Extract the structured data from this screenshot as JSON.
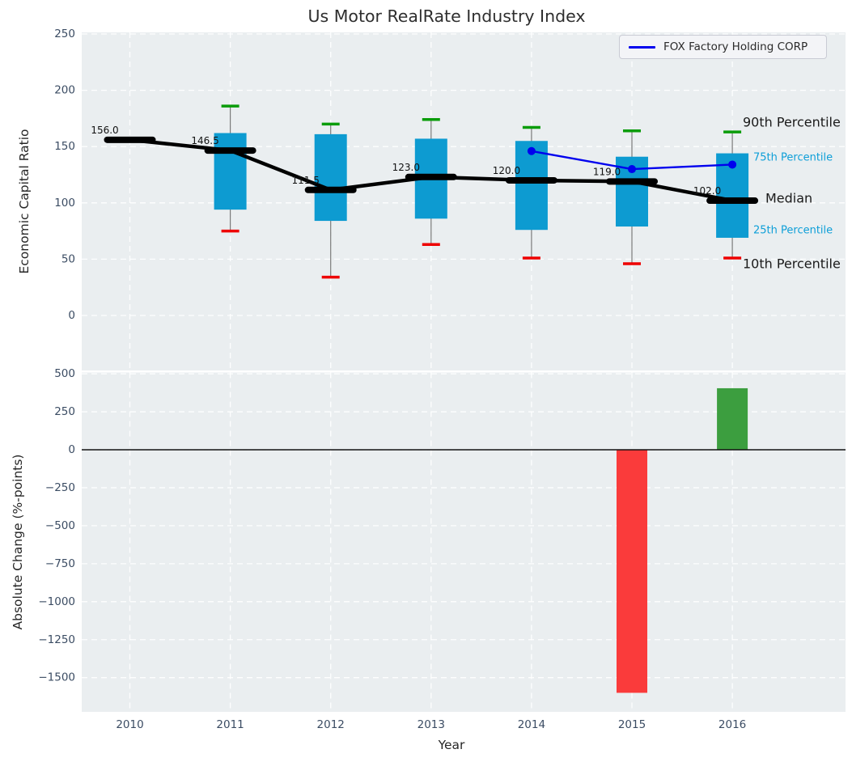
{
  "title": "Us Motor RealRate Industry Index",
  "legend": {
    "label": "FOX Factory Holding CORP"
  },
  "axis": {
    "top_ylabel": "Economic Capital Ratio",
    "bottom_ylabel": "Absolute Change (%-points)",
    "xlabel": "Year"
  },
  "annotations": [
    {
      "text": "90th Percentile",
      "style": "dark"
    },
    {
      "text": "75th Percentile",
      "style": "cyan"
    },
    {
      "text": "Median",
      "style": "dark"
    },
    {
      "text": "25th Percentile",
      "style": "cyan"
    },
    {
      "text": "10th Percentile",
      "style": "dark"
    }
  ],
  "colors": {
    "panel_bg": "#eaeef0",
    "grid": "#ffffff",
    "tick": "#3b4c63",
    "box": "#0d9bd1",
    "cap_high": "#0a9c0a",
    "cap_low": "#ee0000",
    "whisker": "#7a7a7a",
    "median": "#000000",
    "fox_line": "#0000ee",
    "bar_up": "#3c9e3f",
    "bar_down": "#fa3b3b",
    "zero_line": "#111111",
    "median_label": "#111111"
  },
  "chart_data": [
    {
      "type": "boxplot",
      "title": "Us Motor RealRate Industry Index",
      "ylabel": "Economic Capital Ratio",
      "xlabel": "",
      "ylim": [
        -49,
        251
      ],
      "yticks": [
        0,
        50,
        100,
        150,
        200,
        250
      ],
      "grid": true,
      "legend_position": "upper right",
      "categories": [
        "2010",
        "2011",
        "2012",
        "2013",
        "2014",
        "2015",
        "2016"
      ],
      "boxes": [
        {
          "year": "2010",
          "median": 156.0,
          "label": "156.0"
        },
        {
          "year": "2011",
          "p10": 75,
          "p25": 94,
          "median": 146.5,
          "p75": 162,
          "p90": 186,
          "label": "146.5"
        },
        {
          "year": "2012",
          "p10": 34,
          "p25": 84,
          "median": 111.5,
          "p75": 161,
          "p90": 170,
          "label": "111.5"
        },
        {
          "year": "2013",
          "p10": 63,
          "p25": 86,
          "median": 123.0,
          "p75": 157,
          "p90": 174,
          "label": "123.0"
        },
        {
          "year": "2014",
          "p10": 51,
          "p25": 76,
          "median": 120.0,
          "p75": 155,
          "p90": 167,
          "label": "120.0"
        },
        {
          "year": "2015",
          "p10": 46,
          "p25": 79,
          "median": 119.0,
          "p75": 141,
          "p90": 164,
          "label": "119.0"
        },
        {
          "year": "2016",
          "p10": 51,
          "p25": 69,
          "median": 102.0,
          "p75": 144,
          "p90": 163,
          "label": "102.0"
        }
      ],
      "series": [
        {
          "name": "FOX Factory Holding CORP",
          "points": [
            {
              "year": "2014",
              "value": 146
            },
            {
              "year": "2015",
              "value": 130
            },
            {
              "year": "2016",
              "value": 134
            }
          ]
        }
      ]
    },
    {
      "type": "bar",
      "ylabel": "Absolute Change (%-points)",
      "xlabel": "Year",
      "ylim": [
        -1720,
        510
      ],
      "yticks": [
        500,
        250,
        0,
        -250,
        -500,
        -750,
        -1000,
        -1250,
        -1500
      ],
      "grid": true,
      "categories": [
        "2010",
        "2011",
        "2012",
        "2013",
        "2014",
        "2015",
        "2016"
      ],
      "values": [
        null,
        null,
        null,
        null,
        null,
        -1600,
        405
      ]
    }
  ]
}
